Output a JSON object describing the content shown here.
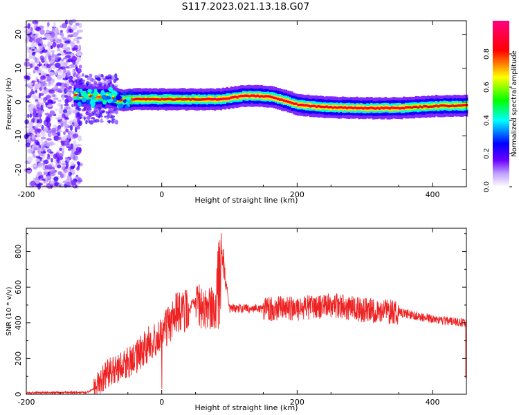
{
  "title": "S117.2023.021.13.18.G07",
  "chart_data": [
    {
      "type": "heatmap",
      "xlabel": "Height of straight line (km)",
      "ylabel": "Frequency (Hz)",
      "xlim": [
        -200,
        450
      ],
      "ylim": [
        -25,
        24
      ],
      "x_ticks": [
        -200,
        0,
        200,
        400
      ],
      "y_ticks": [
        -20,
        -10,
        0,
        10,
        20
      ],
      "colorbar": {
        "label": "Normalized spectral amplitude",
        "range": [
          0,
          1
        ],
        "ticks": [
          0.0,
          0.2,
          0.4,
          0.6,
          0.8
        ],
        "colors": [
          "#ffffff",
          "#6a00ff",
          "#0000ff",
          "#00ffff",
          "#00ff00",
          "#ffff00",
          "#ff0000",
          "#ff0080"
        ]
      },
      "ridge_frequency": {
        "x": [
          -130,
          -100,
          -80,
          -60,
          -40,
          -20,
          0,
          20,
          40,
          60,
          80,
          100,
          120,
          140,
          160,
          180,
          200,
          220,
          250,
          300,
          350,
          400,
          450
        ],
        "y": [
          2,
          1.5,
          1.5,
          0.5,
          0.8,
          0.8,
          0.8,
          0.8,
          0.8,
          0.8,
          0.8,
          1.2,
          1.8,
          1.8,
          1.5,
          0.5,
          -0.8,
          -1.2,
          -1.6,
          -1.8,
          -1.8,
          -1.2,
          -1.0
        ]
      }
    },
    {
      "type": "line",
      "xlabel": "Height of straight line (km)",
      "ylabel": "SNR (10 * v/v)",
      "xlim": [
        -200,
        450
      ],
      "ylim": [
        0,
        930
      ],
      "x_ticks": [
        -200,
        0,
        200,
        400
      ],
      "y_ticks": [
        0,
        200,
        400,
        600,
        800
      ],
      "series": [
        {
          "color": "#ee2222",
          "x": [
            -200,
            -150,
            -110,
            -100,
            -80,
            -60,
            -40,
            -20,
            0,
            20,
            40,
            50,
            60,
            80,
            85,
            100,
            150,
            200,
            250,
            300,
            350,
            400,
            450
          ],
          "y": [
            8,
            10,
            10,
            30,
            120,
            150,
            200,
            280,
            320,
            450,
            480,
            520,
            480,
            480,
            930,
            480,
            480,
            480,
            500,
            470,
            460,
            420,
            400
          ]
        }
      ]
    }
  ]
}
